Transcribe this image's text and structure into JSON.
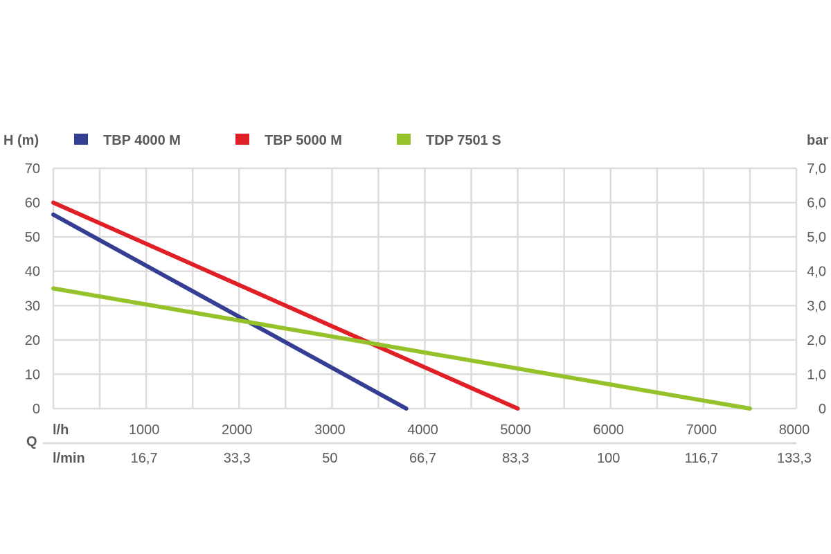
{
  "chart_data": {
    "type": "line",
    "ylabel_left": "H (m)",
    "ylabel_right": "bar",
    "xlabel": "Q",
    "x_unit_primary": "l/h",
    "x_unit_secondary": "l/min",
    "xlim": [
      0,
      8000
    ],
    "ylim": [
      0,
      70
    ],
    "grid": true,
    "legend_position": "top",
    "x_ticks": [
      1000,
      2000,
      3000,
      4000,
      5000,
      6000,
      7000,
      8000
    ],
    "x_tick_labels": [
      "1000",
      "2000",
      "3000",
      "4000",
      "5000",
      "6000",
      "7000",
      "8000"
    ],
    "x_secondary_tick_labels": [
      "16,7",
      "33,3",
      "50",
      "66,7",
      "83,3",
      "100",
      "116,7",
      "133,3"
    ],
    "y_ticks": [
      0,
      10,
      20,
      30,
      40,
      50,
      60,
      70
    ],
    "y_tick_labels": [
      "0",
      "10",
      "20",
      "30",
      "40",
      "50",
      "60",
      "70"
    ],
    "y_right_tick_labels": [
      "0",
      "1,0",
      "2,0",
      "3,0",
      "4,0",
      "5,0",
      "6,0",
      "7,0"
    ],
    "series": [
      {
        "name": "TBP 4000 M",
        "color": "#343f94",
        "points": [
          [
            0,
            56.5
          ],
          [
            3800,
            0
          ]
        ]
      },
      {
        "name": "TBP 5000 M",
        "color": "#e01f26",
        "points": [
          [
            0,
            60
          ],
          [
            5000,
            0
          ]
        ]
      },
      {
        "name": "TDP 7501 S",
        "color": "#95c12b",
        "points": [
          [
            0,
            35
          ],
          [
            7500,
            0
          ]
        ]
      }
    ]
  }
}
